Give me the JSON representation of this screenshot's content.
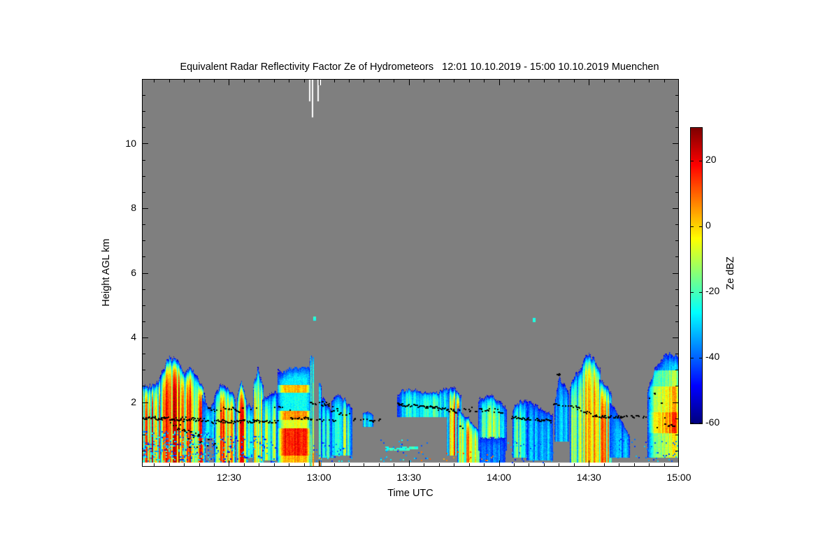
{
  "title": "Equivalent Radar Reflectivity Factor Ze of Hydrometeors   12:01 10.10.2019 - 15:00 10.10.2019 Muenchen",
  "axes": {
    "x_label": "Time UTC",
    "y_label": "Height AGL km",
    "x_ticks": [
      {
        "label": "12:30",
        "min": 29
      },
      {
        "label": "13:00",
        "min": 59
      },
      {
        "label": "13:30",
        "min": 89
      },
      {
        "label": "14:00",
        "min": 119
      },
      {
        "label": "14:30",
        "min": 149
      },
      {
        "label": "15:00",
        "min": 179
      }
    ],
    "y_ticks": [
      {
        "label": "2",
        "km": 2
      },
      {
        "label": "4",
        "km": 4
      },
      {
        "label": "6",
        "km": 6
      },
      {
        "label": "8",
        "km": 8
      },
      {
        "label": "10",
        "km": 10
      }
    ],
    "x_minor_step_min": 5,
    "y_minor_step_km": 0.5
  },
  "colorbar": {
    "label": "Ze dBZ",
    "range": [
      -60,
      30
    ],
    "ticks": [
      {
        "label": "20",
        "value": 20
      },
      {
        "label": "0",
        "value": 0
      },
      {
        "label": "-20",
        "value": -20
      },
      {
        "label": "-40",
        "value": -40
      },
      {
        "label": "-60",
        "value": -60
      }
    ],
    "colormap": "jet"
  },
  "chart_data": {
    "type": "heatmap",
    "title": "Equivalent Radar Reflectivity Factor Ze of Hydrometeors",
    "site": "Muenchen",
    "time_start": "12:01 10.10.2019",
    "time_end": "15:00 10.10.2019",
    "duration_min": 179,
    "height_range_km": [
      0,
      12
    ],
    "value_unit": "dBZ",
    "value_range": [
      -60,
      30
    ],
    "no_signal_color": "#7f7f7f",
    "lowest_gate_km": 0.12,
    "echo_cells": [
      {
        "t": [
          -1,
          7
        ],
        "top": [
          [
            -1,
            2.8
          ],
          [
            2,
            2.5
          ],
          [
            5,
            2.7
          ],
          [
            7,
            3.0
          ]
        ],
        "core": 23,
        "fill": 0.62,
        "streak": 0.7,
        "seed": 11
      },
      {
        "t": [
          6,
          15
        ],
        "top": [
          [
            6,
            2.9
          ],
          [
            9,
            3.45
          ],
          [
            12,
            3.3
          ],
          [
            15,
            2.9
          ]
        ],
        "core": 27,
        "fill": 0.7,
        "streak": 0.7,
        "seed": 12
      },
      {
        "t": [
          14,
          21
        ],
        "top": [
          [
            14,
            3.0
          ],
          [
            17,
            3.1
          ],
          [
            21,
            2.35
          ]
        ],
        "core": 24,
        "fill": 0.66,
        "streak": 0.75,
        "seed": 13
      },
      {
        "t": [
          20,
          25
        ],
        "base": 0.9,
        "top": [
          [
            20,
            2.25
          ],
          [
            22,
            1.85
          ],
          [
            25,
            2.2
          ]
        ],
        "core": -20,
        "fill": 0.4,
        "streak": 0.6,
        "seed": 14
      },
      {
        "t": [
          24,
          31
        ],
        "top": [
          [
            24,
            2.3
          ],
          [
            26,
            2.6
          ],
          [
            28.5,
            2.5
          ],
          [
            31,
            2.2
          ]
        ],
        "core": 20,
        "fill": 0.55,
        "streak": 0.8,
        "seed": 15
      },
      {
        "t": [
          31.5,
          34.8
        ],
        "top": [
          [
            31.5,
            2.2
          ],
          [
            33,
            2.75
          ],
          [
            34.8,
            2.1
          ]
        ],
        "core": 24,
        "fill": 0.6,
        "streak": 0.6,
        "seed": 16
      },
      {
        "t": [
          34.5,
          37.2
        ],
        "base": 0.3,
        "top": 2.0,
        "core": -8,
        "fill": 0.4,
        "streak": 0.7,
        "seed": 17
      },
      {
        "t": [
          37,
          40.5
        ],
        "top": [
          [
            37,
            2.5
          ],
          [
            38.5,
            3.15
          ],
          [
            40.5,
            2.5
          ]
        ],
        "core": 20,
        "fill": 0.55,
        "streak": 0.65,
        "seed": 18
      },
      {
        "t": [
          40,
          45.2
        ],
        "base": 0.2,
        "top": [
          [
            40,
            2.2
          ],
          [
            42,
            2.3
          ],
          [
            45.2,
            2.4
          ]
        ],
        "core": -3,
        "fill": 0.45,
        "streak": 0.8,
        "seed": 19
      },
      {
        "t": [
          45,
          56.6
        ],
        "top": [
          [
            45,
            2.95
          ],
          [
            50,
            3.05
          ],
          [
            56.6,
            3.1
          ]
        ],
        "streak": 0.25,
        "seed": 20,
        "bands": [
          [
            0.13,
            0.35,
            6
          ],
          [
            0.35,
            1.2,
            20
          ],
          [
            1.2,
            1.45,
            -4
          ],
          [
            1.45,
            1.75,
            9
          ],
          [
            1.75,
            2.3,
            -24
          ],
          [
            2.3,
            2.55,
            5
          ],
          [
            2.55,
            3.1,
            -27
          ]
        ]
      },
      {
        "t": [
          55.9,
          56.5
        ],
        "base": 0,
        "top": 3.45,
        "streak": 0.1,
        "seed": 21,
        "bands": [
          [
            0,
            1.0,
            -6
          ],
          [
            1.0,
            3.45,
            -17
          ]
        ]
      },
      {
        "t": [
          56.7,
          57.3
        ],
        "base": 0,
        "top": 3.4,
        "streak": 0.1,
        "seed": 22,
        "bands": [
          [
            0,
            0.45,
            16
          ],
          [
            0.45,
            1.5,
            -3
          ],
          [
            1.5,
            2.6,
            -13
          ],
          [
            2.6,
            3.4,
            -21
          ]
        ]
      },
      {
        "t": [
          58.8,
          59.7
        ],
        "base": 0,
        "top": 2.6,
        "streak": 0.15,
        "seed": 23,
        "bands": [
          [
            0,
            0.3,
            12
          ],
          [
            0.3,
            1.5,
            -16
          ],
          [
            1.5,
            2.6,
            -26
          ]
        ]
      },
      {
        "t": [
          59.6,
          63
        ],
        "base": 0.3,
        "top": [
          [
            59.6,
            2.3
          ],
          [
            63,
            1.8
          ]
        ],
        "core": -17,
        "fill": 0.45,
        "streak": 0.7,
        "seed": 24
      },
      {
        "t": [
          63,
          70
        ],
        "base": 0.35,
        "top": [
          [
            63,
            2.15
          ],
          [
            66,
            2.3
          ],
          [
            70,
            1.9
          ]
        ],
        "core": -7,
        "fill": 0.5,
        "streak": 0.7,
        "seed": 25
      },
      {
        "t": [
          73.5,
          77
        ],
        "base": 1.25,
        "top": 1.68,
        "core": -22,
        "fill": 0.4,
        "streak": 0.5,
        "seed": 26
      },
      {
        "t": [
          85,
          104.5
        ],
        "base": 1.55,
        "top": [
          [
            85,
            2.35
          ],
          [
            90,
            2.45
          ],
          [
            97,
            2.3
          ],
          [
            104.5,
            2.5
          ]
        ],
        "core": -16,
        "fill": 0.55,
        "streak": 0.55,
        "seed": 27
      },
      {
        "t": [
          101.5,
          106.5
        ],
        "base": 0.35,
        "top": [
          [
            101.5,
            2.45
          ],
          [
            104,
            2.5
          ],
          [
            106.5,
            2.3
          ]
        ],
        "core": 17,
        "fill": 0.6,
        "streak": 0.8,
        "seed": 28
      },
      {
        "t": [
          105,
          112.8
        ],
        "base": 0.15,
        "top": [
          [
            105,
            1.9
          ],
          [
            108,
            1.6
          ],
          [
            112.8,
            1.15
          ]
        ],
        "core": 13,
        "fill": 0.55,
        "streak": 0.7,
        "seed": 29
      },
      {
        "t": [
          112,
          121.5
        ],
        "base": 0.5,
        "top": [
          [
            112,
            2.15
          ],
          [
            116,
            2.3
          ],
          [
            121.5,
            1.9
          ]
        ],
        "core": -7,
        "fill": 0.5,
        "streak": 0.65,
        "seed": 30
      },
      {
        "t": [
          112.5,
          121
        ],
        "base": 0.15,
        "top": 0.95,
        "core": -33,
        "fill": 0.35,
        "streak": 0.7,
        "seed": 31
      },
      {
        "t": [
          123.5,
          129.5
        ],
        "base": 0.3,
        "top": [
          [
            123.5,
            1.85
          ],
          [
            126,
            2.2
          ],
          [
            129.5,
            2.0
          ]
        ],
        "core": -12,
        "fill": 0.5,
        "streak": 0.6,
        "seed": 32
      },
      {
        "t": [
          128,
          137
        ],
        "base": 0.2,
        "top": [
          [
            128,
            2.2
          ],
          [
            132,
            2.0
          ],
          [
            137,
            1.65
          ]
        ],
        "core": -26,
        "fill": 0.45,
        "streak": 0.75,
        "seed": 33
      },
      {
        "t": [
          137.5,
          142.3
        ],
        "base": 0.8,
        "top": [
          [
            137.5,
            2.0
          ],
          [
            139,
            2.9
          ],
          [
            142.3,
            2.4
          ]
        ],
        "core": -27,
        "fill": 0.45,
        "streak": 0.7,
        "seed": 34
      },
      {
        "t": [
          142.5,
          147.5
        ],
        "base": 0.15,
        "top": [
          [
            142.5,
            2.6
          ],
          [
            145,
            3.0
          ],
          [
            147.5,
            3.3
          ]
        ],
        "core": -4,
        "fill": 0.5,
        "streak": 0.75,
        "seed": 35
      },
      {
        "t": [
          146.5,
          152.8
        ],
        "base": 0.13,
        "top": [
          [
            146.5,
            3.3
          ],
          [
            149,
            3.55
          ],
          [
            152.8,
            3.1
          ]
        ],
        "core": 27,
        "fill": 0.72,
        "streak": 0.55,
        "seed": 36
      },
      {
        "t": [
          152.3,
          156.5
        ],
        "base": 0.15,
        "top": [
          [
            152.3,
            2.9
          ],
          [
            156.5,
            2.3
          ]
        ],
        "core": 15,
        "fill": 0.55,
        "streak": 0.7,
        "seed": 37
      },
      {
        "t": [
          155.8,
          162.5
        ],
        "base": 0.3,
        "top": [
          [
            155.8,
            2.2
          ],
          [
            162.5,
            1.0
          ]
        ],
        "core": -29,
        "fill": 0.4,
        "streak": 0.75,
        "seed": 38
      },
      {
        "t": [
          168.5,
          179.8
        ],
        "base": 0.3,
        "top": [
          [
            168.5,
            2.5
          ],
          [
            172,
            3.3
          ],
          [
            176,
            3.5
          ],
          [
            179.8,
            3.3
          ]
        ],
        "streak": 0.42,
        "grad": [
          0.55,
          1.05
        ],
        "seed": 39,
        "bands": [
          [
            0.3,
            1.05,
            3
          ],
          [
            1.05,
            1.7,
            22
          ],
          [
            1.7,
            2.5,
            10
          ],
          [
            2.5,
            3.0,
            -6
          ],
          [
            3.0,
            3.55,
            -28
          ]
        ]
      }
    ],
    "speckle_fields": [
      {
        "t": [
          0,
          22
        ],
        "h": [
          0.15,
          1.1
        ],
        "d": 0.22,
        "dbz": [
          -48,
          -18
        ]
      },
      {
        "t": [
          22,
          45
        ],
        "h": [
          0.15,
          0.95
        ],
        "d": 0.12,
        "dbz": [
          -50,
          -25
        ]
      },
      {
        "t": [
          57,
          70
        ],
        "h": [
          0.15,
          0.75
        ],
        "d": 0.09,
        "dbz": [
          -48,
          -25
        ]
      },
      {
        "t": [
          79,
          95
        ],
        "h": [
          0.2,
          0.85
        ],
        "d": 0.06,
        "dbz": [
          -45,
          -22
        ]
      },
      {
        "t": [
          81,
          91
        ],
        "h": [
          0.53,
          0.63
        ],
        "d": 0.45,
        "dbz": [
          -26,
          -18
        ],
        "dash": true
      },
      {
        "t": [
          93,
          118
        ],
        "h": [
          0.22,
          0.48
        ],
        "d": 0.05,
        "dbz": [
          3,
          14
        ]
      },
      {
        "t": [
          120,
          137
        ],
        "h": [
          0.15,
          0.8
        ],
        "d": 0.07,
        "dbz": [
          -48,
          -28
        ]
      },
      {
        "t": [
          158,
          170
        ],
        "h": [
          0.2,
          0.95
        ],
        "d": 0.05,
        "dbz": [
          -47,
          -30
        ]
      },
      {
        "t": [
          170,
          179.5
        ],
        "h": [
          0.2,
          0.85
        ],
        "d": 0.08,
        "dbz": [
          -46,
          -28
        ]
      },
      {
        "t": [
          57.2,
          57.8
        ],
        "h": [
          4.55,
          4.65
        ],
        "d": 0.9,
        "dbz": [
          -26,
          -20
        ]
      },
      {
        "t": [
          130.2,
          130.8
        ],
        "h": [
          4.5,
          4.6
        ],
        "d": 0.9,
        "dbz": [
          -26,
          -20
        ]
      }
    ],
    "black_dot_segments": [
      [
        0,
        22,
        1.52,
        1.48,
        0.06,
        0.9
      ],
      [
        9,
        20,
        1.4,
        0.85,
        0.12,
        0.45
      ],
      [
        13,
        25,
        0.75,
        0.75,
        0.15,
        0.25
      ],
      [
        22,
        38,
        1.8,
        1.78,
        0.08,
        0.5
      ],
      [
        23,
        45,
        1.42,
        1.42,
        0.05,
        0.9
      ],
      [
        44,
        50,
        1.85,
        1.8,
        0.05,
        0.45
      ],
      [
        49,
        56.5,
        1.55,
        1.5,
        0.05,
        0.8
      ],
      [
        56,
        63,
        2.0,
        1.95,
        0.06,
        0.65
      ],
      [
        58,
        64.5,
        1.5,
        1.45,
        0.05,
        0.45
      ],
      [
        63,
        70,
        1.8,
        1.6,
        0.14,
        0.35
      ],
      [
        70,
        79,
        1.5,
        1.45,
        0.05,
        0.4
      ],
      [
        85,
        98,
        1.95,
        1.85,
        0.04,
        0.9
      ],
      [
        98,
        104.5,
        1.85,
        1.75,
        0.06,
        0.8
      ],
      [
        103.5,
        107,
        1.9,
        1.4,
        0.3,
        0.5
      ],
      [
        107,
        121.5,
        1.8,
        1.75,
        0.07,
        0.6
      ],
      [
        123,
        136.5,
        1.55,
        1.42,
        0.05,
        0.75
      ],
      [
        137,
        141.5,
        2.0,
        1.85,
        0.06,
        0.5
      ],
      [
        138,
        139.8,
        2.9,
        2.87,
        0.04,
        0.7
      ],
      [
        142,
        151.5,
        1.95,
        1.55,
        0.06,
        0.85
      ],
      [
        151,
        160,
        1.58,
        1.55,
        0.04,
        0.8
      ],
      [
        160,
        168.5,
        1.6,
        1.55,
        0.04,
        0.45
      ],
      [
        169,
        175,
        2.3,
        1.5,
        0.3,
        0.45
      ],
      [
        171,
        177.5,
        1.3,
        1.25,
        0.07,
        0.3
      ]
    ],
    "data_gap_columns": [
      {
        "t": 55.8,
        "down_to_km": 11.3
      },
      {
        "t": 56.6,
        "down_to_km": 10.8
      },
      {
        "t": 58.4,
        "down_to_km": 11.3
      },
      {
        "t": 59.2,
        "down_to_km": 11.8
      }
    ]
  }
}
